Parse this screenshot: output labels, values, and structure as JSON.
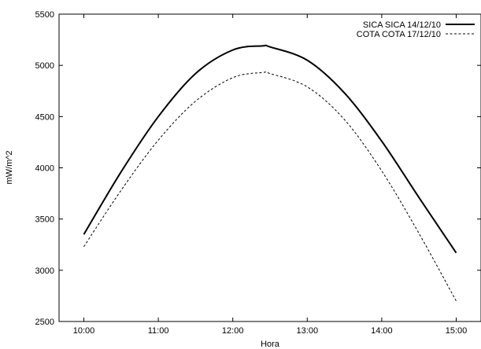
{
  "chart_data": {
    "type": "line",
    "title": "",
    "xlabel": "Hora",
    "ylabel": "mW/m^2",
    "xlim": [
      9.667,
      15.333
    ],
    "ylim": [
      2500,
      5500
    ],
    "x_ticks": [
      {
        "value": 10,
        "label": "10:00"
      },
      {
        "value": 11,
        "label": "11:00"
      },
      {
        "value": 12,
        "label": "12:00"
      },
      {
        "value": 13,
        "label": "13:00"
      },
      {
        "value": 14,
        "label": "14:00"
      },
      {
        "value": 15,
        "label": "15:00"
      }
    ],
    "y_ticks": [
      {
        "value": 2500,
        "label": "2500"
      },
      {
        "value": 3000,
        "label": "3000"
      },
      {
        "value": 3500,
        "label": "3500"
      },
      {
        "value": 4000,
        "label": "4000"
      },
      {
        "value": 4500,
        "label": "4500"
      },
      {
        "value": 5000,
        "label": "5000"
      },
      {
        "value": 5500,
        "label": "5500"
      }
    ],
    "grid": false,
    "legend_position": "top-right",
    "series": [
      {
        "name": "SICA SICA 14/12/10",
        "style": "solid",
        "color": "#000000",
        "x": [
          10.0,
          10.5,
          11.0,
          11.5,
          12.0,
          12.4,
          12.5,
          13.0,
          13.5,
          14.0,
          14.5,
          15.0
        ],
        "y": [
          3350,
          3960,
          4500,
          4920,
          5150,
          5190,
          5180,
          5050,
          4730,
          4260,
          3710,
          3170
        ]
      },
      {
        "name": "COTA COTA 17/12/10",
        "style": "dashed",
        "color": "#000000",
        "x": [
          10.0,
          10.5,
          11.0,
          11.5,
          12.0,
          12.4,
          12.5,
          13.0,
          13.5,
          14.0,
          14.5,
          15.0
        ],
        "y": [
          3230,
          3780,
          4270,
          4650,
          4880,
          4930,
          4920,
          4790,
          4470,
          3970,
          3360,
          2700
        ]
      }
    ]
  }
}
